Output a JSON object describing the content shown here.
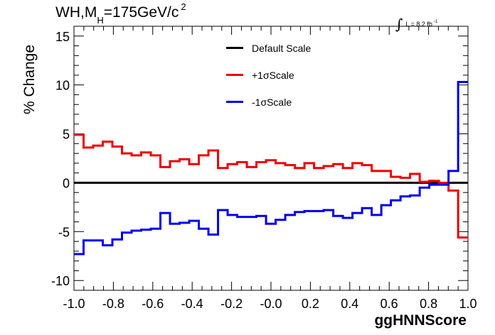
{
  "chart_data": {
    "type": "line",
    "title": "WH,M",
    "title_sub": "H",
    "title_rest": "=175GeV/c",
    "title_sup": "2",
    "lumi_symbol": "∫",
    "lumi_text": "L = 8.2 fb",
    "lumi_sup": "-1",
    "xlabel": "ggHNNScore",
    "ylabel": "% Change",
    "xlim": [
      -1.0,
      1.0
    ],
    "ylim": [
      -11,
      16
    ],
    "xticks": [
      "-1.0",
      "-0.8",
      "-0.6",
      "-0.4",
      "-0.2",
      "-0.0",
      "0.2",
      "0.4",
      "0.6",
      "0.8",
      "1.0"
    ],
    "yticks": [
      "-10",
      "-5",
      "0",
      "5",
      "10",
      "15"
    ],
    "legend_position": "top-center",
    "series": [
      {
        "name": "Default Scale",
        "color": "#000000",
        "values": [
          0,
          0,
          0,
          0,
          0,
          0,
          0,
          0,
          0,
          0,
          0,
          0,
          0,
          0,
          0,
          0,
          0,
          0,
          0,
          0,
          0,
          0,
          0,
          0,
          0,
          0,
          0,
          0,
          0,
          0,
          0,
          0,
          0,
          0,
          0,
          0,
          0,
          0,
          0,
          0
        ]
      },
      {
        "name": "+1σScale",
        "color": "#ee0000",
        "values": [
          4.9,
          3.6,
          3.8,
          4.2,
          3.7,
          3.0,
          2.8,
          3.1,
          2.8,
          1.6,
          2.2,
          2.4,
          1.9,
          2.8,
          3.3,
          1.5,
          1.9,
          2.1,
          1.6,
          2.1,
          2.3,
          2.0,
          1.8,
          1.5,
          2.0,
          1.5,
          1.7,
          1.9,
          1.5,
          2.0,
          1.8,
          1.2,
          1.2,
          0.6,
          0.5,
          0.9,
          0.1,
          0.2,
          0.0,
          -0.8
        ]
      },
      {
        "name": "-1σScale",
        "color": "#0000ee",
        "values": [
          -7.3,
          -5.9,
          -5.9,
          -6.4,
          -5.8,
          -5.1,
          -4.9,
          -4.8,
          -4.7,
          -3.1,
          -4.2,
          -4.1,
          -3.9,
          -4.7,
          -5.3,
          -2.8,
          -3.3,
          -3.5,
          -3.5,
          -3.4,
          -4.2,
          -3.8,
          -3.3,
          -3.0,
          -2.9,
          -2.9,
          -2.8,
          -3.4,
          -3.6,
          -3.1,
          -2.6,
          -3.3,
          -2.3,
          -1.8,
          -1.4,
          -1.3,
          -0.5,
          -0.2,
          -0.2,
          1.2
        ]
      }
    ],
    "extra_edge": {
      "+1σScale": {
        "x_from": 0.95,
        "value": -5.6
      },
      "-1σScale": {
        "x_from": 0.95,
        "value": 10.3
      }
    }
  }
}
